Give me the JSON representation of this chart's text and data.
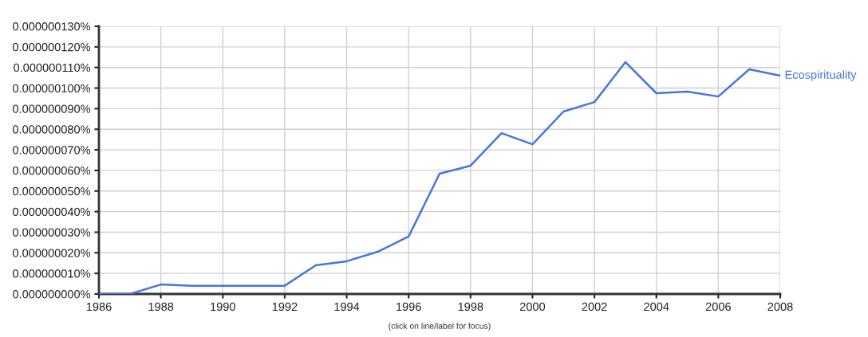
{
  "chart_data": {
    "type": "line",
    "x": [
      1986,
      1987,
      1988,
      1989,
      1990,
      1991,
      1992,
      1993,
      1994,
      1995,
      1996,
      1997,
      1998,
      1999,
      2000,
      2001,
      2002,
      2003,
      2004,
      2005,
      2006,
      2007,
      2008
    ],
    "series": [
      {
        "name": "Ecospirituality",
        "color": "#4575e0",
        "values": [
          0,
          0,
          4.6e-09,
          4e-09,
          4e-09,
          4e-09,
          4e-09,
          1.39e-08,
          1.59e-08,
          2.05e-08,
          2.79e-08,
          5.84e-08,
          6.23e-08,
          7.81e-08,
          7.27e-08,
          8.86e-08,
          9.32e-08,
          1.126e-07,
          9.75e-08,
          9.83e-08,
          9.59e-08,
          1.091e-07,
          1.06e-07
        ]
      }
    ],
    "xlim": [
      1986,
      2008
    ],
    "xticks": [
      1986,
      1988,
      1990,
      1992,
      1994,
      1996,
      1998,
      2000,
      2002,
      2004,
      2006,
      2008
    ],
    "ylim": [
      0,
      1.3e-07
    ],
    "yticks": [
      {
        "value": 0,
        "label": "0.000000000%"
      },
      {
        "value": 1e-08,
        "label": "0.000000010%"
      },
      {
        "value": 2e-08,
        "label": "0.000000020%"
      },
      {
        "value": 3e-08,
        "label": "0.000000030%"
      },
      {
        "value": 4e-08,
        "label": "0.000000040%"
      },
      {
        "value": 5e-08,
        "label": "0.000000050%"
      },
      {
        "value": 6e-08,
        "label": "0.000000060%"
      },
      {
        "value": 7e-08,
        "label": "0.000000070%"
      },
      {
        "value": 8e-08,
        "label": "0.000000080%"
      },
      {
        "value": 9e-08,
        "label": "0.000000090%"
      },
      {
        "value": 1e-07,
        "label": "0.000000100%"
      },
      {
        "value": 1.1e-07,
        "label": "0.000000110%"
      },
      {
        "value": 1.2e-07,
        "label": "0.000000120%"
      },
      {
        "value": 1.3e-07,
        "label": "0.000000130%"
      }
    ],
    "grid": true,
    "legend": false,
    "marker": "none",
    "line_style": "solid",
    "annotations": [
      "(click on line/label for focus)"
    ]
  }
}
